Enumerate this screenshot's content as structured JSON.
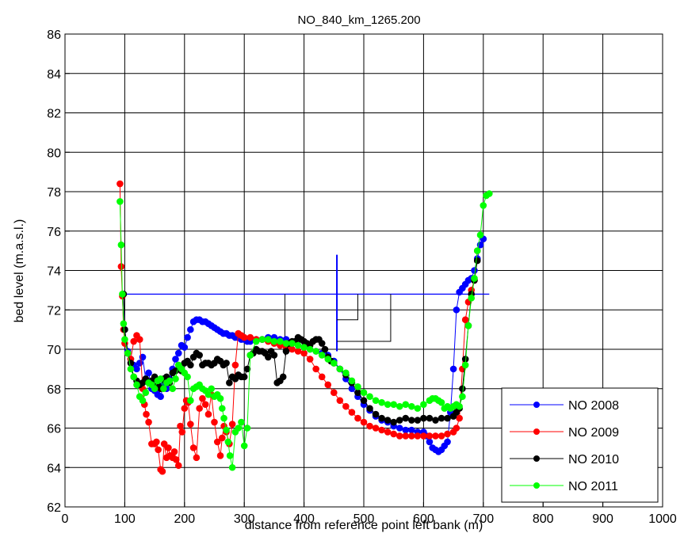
{
  "chart_data": {
    "type": "line",
    "title": "NO_840_km_1265.200",
    "xlabel": "distance from reference point left bank (m)",
    "ylabel": "bed level (m.a.s.l.)",
    "xlim": [
      0,
      1000
    ],
    "ylim": [
      62,
      86
    ],
    "x_ticks": [
      0,
      100,
      200,
      300,
      400,
      500,
      600,
      700,
      800,
      900,
      1000
    ],
    "y_ticks": [
      62,
      64,
      66,
      68,
      70,
      72,
      74,
      76,
      78,
      80,
      82,
      84,
      86
    ],
    "grid": true,
    "legend_position": "bottom-right",
    "series": [
      {
        "name": "NO 2008",
        "color": "#0000ff",
        "x": [
          98,
          100,
          105,
          110,
          115,
          120,
          125,
          130,
          135,
          140,
          145,
          150,
          155,
          160,
          165,
          170,
          175,
          180,
          185,
          190,
          195,
          200,
          205,
          210,
          215,
          220,
          225,
          230,
          235,
          240,
          245,
          250,
          255,
          260,
          265,
          270,
          275,
          280,
          285,
          290,
          295,
          300,
          305,
          310,
          320,
          330,
          340,
          350,
          360,
          370,
          380,
          390,
          400,
          410,
          420,
          430,
          440,
          450,
          460,
          470,
          480,
          490,
          500,
          510,
          520,
          530,
          540,
          550,
          560,
          570,
          580,
          590,
          600,
          605,
          610,
          615,
          620,
          625,
          630,
          635,
          640,
          645,
          650,
          655,
          660,
          665,
          670,
          675,
          680,
          685,
          690,
          695,
          700
        ],
        "y": [
          72.8,
          71.0,
          69.9,
          69.5,
          69.2,
          69.0,
          69.3,
          69.6,
          68.5,
          68.8,
          68.0,
          67.9,
          67.7,
          67.6,
          68.2,
          68.0,
          68.5,
          69.0,
          69.5,
          69.8,
          70.2,
          70.1,
          70.6,
          71.0,
          71.4,
          71.5,
          71.5,
          71.4,
          71.4,
          71.3,
          71.2,
          71.1,
          71.0,
          70.9,
          70.8,
          70.8,
          70.7,
          70.7,
          70.6,
          70.6,
          70.5,
          70.5,
          70.4,
          70.4,
          70.5,
          70.5,
          70.6,
          70.6,
          70.5,
          70.5,
          70.3,
          70.2,
          70.1,
          70.0,
          69.9,
          69.8,
          69.7,
          69.4,
          69.0,
          68.5,
          68.0,
          67.6,
          67.2,
          66.9,
          66.6,
          66.4,
          66.3,
          66.1,
          66.0,
          65.9,
          65.9,
          65.8,
          65.8,
          65.6,
          65.3,
          65.0,
          64.9,
          64.8,
          64.9,
          65.1,
          65.3,
          66.8,
          69.0,
          72.0,
          72.9,
          73.1,
          73.3,
          73.5,
          73.6,
          74.0,
          74.6,
          75.3,
          75.6
        ],
        "markers_above_y": [
          72.8,
          72.8,
          72.8,
          72.8,
          72.8
        ],
        "notes": ""
      },
      {
        "name": "NO 2009",
        "color": "#ff0000",
        "x": [
          92,
          94,
          96,
          98,
          100,
          105,
          110,
          115,
          120,
          125,
          130,
          133,
          136,
          140,
          145,
          150,
          153,
          156,
          160,
          163,
          166,
          170,
          173,
          176,
          180,
          183,
          186,
          190,
          193,
          196,
          200,
          203,
          206,
          210,
          215,
          220,
          225,
          230,
          235,
          240,
          245,
          250,
          255,
          260,
          263,
          266,
          270,
          275,
          280,
          285,
          290,
          295,
          300,
          310,
          320,
          330,
          340,
          350,
          360,
          370,
          380,
          390,
          400,
          410,
          420,
          430,
          440,
          450,
          460,
          470,
          480,
          490,
          500,
          510,
          520,
          530,
          540,
          550,
          560,
          570,
          580,
          590,
          600,
          610,
          620,
          630,
          640,
          650,
          655,
          660,
          665,
          670,
          675,
          680,
          685,
          690
        ],
        "y": [
          78.4,
          74.2,
          72.7,
          71.0,
          70.3,
          69.8,
          69.5,
          70.4,
          70.7,
          70.5,
          68.0,
          67.2,
          66.7,
          66.3,
          65.2,
          65.2,
          65.3,
          64.9,
          63.9,
          63.8,
          65.2,
          64.5,
          65.0,
          64.6,
          64.5,
          64.8,
          64.4,
          64.1,
          66.1,
          65.8,
          67.0,
          67.4,
          67.3,
          66.2,
          65.0,
          64.5,
          67.0,
          67.5,
          67.2,
          66.7,
          67.7,
          66.3,
          65.3,
          64.6,
          65.5,
          66.1,
          65.8,
          65.2,
          66.2,
          69.2,
          70.8,
          70.7,
          70.6,
          70.6,
          70.5,
          70.5,
          70.4,
          70.3,
          70.2,
          70.1,
          70.0,
          69.9,
          69.8,
          69.5,
          69.0,
          68.6,
          68.2,
          67.8,
          67.4,
          67.1,
          66.8,
          66.5,
          66.3,
          66.1,
          66.0,
          65.9,
          65.8,
          65.7,
          65.6,
          65.6,
          65.6,
          65.6,
          65.6,
          65.6,
          65.6,
          65.6,
          65.7,
          65.8,
          66.0,
          66.5,
          69.0,
          71.5,
          72.4,
          73.0,
          73.5,
          75.0
        ],
        "notes": ""
      },
      {
        "name": "NO 2010",
        "color": "#000000",
        "x": [
          98,
          100,
          105,
          110,
          115,
          120,
          125,
          130,
          135,
          140,
          145,
          150,
          155,
          160,
          165,
          170,
          175,
          180,
          185,
          190,
          195,
          200,
          205,
          210,
          215,
          220,
          225,
          230,
          235,
          240,
          245,
          250,
          255,
          260,
          265,
          270,
          275,
          280,
          285,
          290,
          295,
          300,
          305,
          310,
          315,
          320,
          325,
          330,
          335,
          340,
          345,
          350,
          355,
          360,
          365,
          370,
          375,
          380,
          385,
          390,
          395,
          400,
          405,
          410,
          415,
          420,
          425,
          430,
          435,
          440,
          445,
          450,
          460,
          470,
          480,
          490,
          500,
          510,
          520,
          530,
          540,
          550,
          560,
          570,
          580,
          590,
          600,
          610,
          620,
          630,
          640,
          650,
          655,
          660,
          665,
          670,
          675,
          680,
          685,
          690
        ],
        "y": [
          72.8,
          71.0,
          69.8,
          69.3,
          68.6,
          68.4,
          68.2,
          68.3,
          68.5,
          68.3,
          68.4,
          68.6,
          68.2,
          68.0,
          68.5,
          68.6,
          68.3,
          68.8,
          68.9,
          69.0,
          68.9,
          69.3,
          69.4,
          69.2,
          69.6,
          69.8,
          69.7,
          69.2,
          69.3,
          69.3,
          69.2,
          69.3,
          69.5,
          69.4,
          69.2,
          69.3,
          68.3,
          68.6,
          68.5,
          68.7,
          68.6,
          68.6,
          69.0,
          69.7,
          69.8,
          70.0,
          69.9,
          69.9,
          69.8,
          69.6,
          69.9,
          69.7,
          68.3,
          68.4,
          68.6,
          69.9,
          70.3,
          70.4,
          70.4,
          70.6,
          70.5,
          70.4,
          70.3,
          70.2,
          70.4,
          70.5,
          70.5,
          70.3,
          70.0,
          69.6,
          69.4,
          69.3,
          69.0,
          68.7,
          68.3,
          67.8,
          67.4,
          67.0,
          66.7,
          66.5,
          66.4,
          66.3,
          66.4,
          66.5,
          66.4,
          66.4,
          66.5,
          66.5,
          66.4,
          66.5,
          66.5,
          66.6,
          66.8,
          67.0,
          68.0,
          69.5,
          71.2,
          72.8,
          73.5,
          74.5
        ],
        "notes": ""
      },
      {
        "name": "NO 2011",
        "color": "#00ff00",
        "x": [
          92,
          94,
          96,
          98,
          100,
          105,
          110,
          115,
          120,
          125,
          130,
          135,
          140,
          145,
          150,
          155,
          160,
          165,
          170,
          175,
          180,
          185,
          190,
          195,
          200,
          205,
          210,
          215,
          220,
          225,
          230,
          235,
          240,
          245,
          250,
          255,
          260,
          263,
          266,
          270,
          273,
          276,
          280,
          285,
          290,
          295,
          300,
          305,
          310,
          320,
          330,
          340,
          350,
          360,
          370,
          380,
          390,
          400,
          410,
          420,
          430,
          440,
          450,
          460,
          470,
          480,
          490,
          500,
          510,
          520,
          530,
          540,
          550,
          560,
          570,
          580,
          590,
          600,
          610,
          615,
          620,
          625,
          630,
          635,
          640,
          645,
          650,
          655,
          660,
          665,
          670,
          675,
          680,
          685,
          690,
          695,
          700,
          705,
          710
        ],
        "y": [
          77.5,
          75.3,
          72.8,
          71.3,
          70.5,
          69.8,
          69.0,
          68.6,
          68.2,
          67.6,
          67.4,
          67.8,
          68.3,
          68.2,
          68.0,
          68.4,
          68.5,
          68.0,
          68.3,
          68.4,
          68.0,
          68.5,
          69.2,
          69.0,
          68.8,
          68.6,
          67.4,
          68.0,
          68.1,
          68.2,
          68.0,
          67.9,
          67.7,
          68.0,
          67.6,
          67.7,
          67.5,
          67.0,
          66.5,
          65.9,
          65.3,
          64.6,
          64.0,
          65.8,
          66.0,
          66.3,
          65.1,
          66.0,
          69.7,
          70.4,
          70.5,
          70.5,
          70.4,
          70.4,
          70.3,
          70.3,
          70.2,
          70.1,
          70.0,
          69.9,
          69.7,
          69.5,
          69.3,
          69.0,
          68.8,
          68.4,
          68.1,
          67.8,
          67.6,
          67.4,
          67.3,
          67.2,
          67.2,
          67.1,
          67.2,
          67.1,
          67.0,
          67.2,
          67.4,
          67.5,
          67.5,
          67.4,
          67.3,
          67.0,
          67.1,
          67.0,
          67.1,
          67.2,
          67.1,
          67.6,
          69.2,
          71.2,
          72.6,
          73.6,
          75.0,
          75.8,
          77.3,
          77.8,
          77.9
        ],
        "notes": ""
      }
    ],
    "overlay_lines": {
      "color": "#0000ff",
      "water_level": 72.8,
      "water_level_x": [
        100,
        710
      ],
      "vertical_marker": {
        "x": 455,
        "y": [
          69.9,
          74.8
        ]
      }
    },
    "overlay_black": {
      "color": "#000000"
    }
  },
  "legend": {
    "items": [
      {
        "label": "NO 2008",
        "color": "#0000ff"
      },
      {
        "label": "NO 2009",
        "color": "#ff0000"
      },
      {
        "label": "NO 2010",
        "color": "#000000"
      },
      {
        "label": "NO 2011",
        "color": "#00ff00"
      }
    ]
  }
}
